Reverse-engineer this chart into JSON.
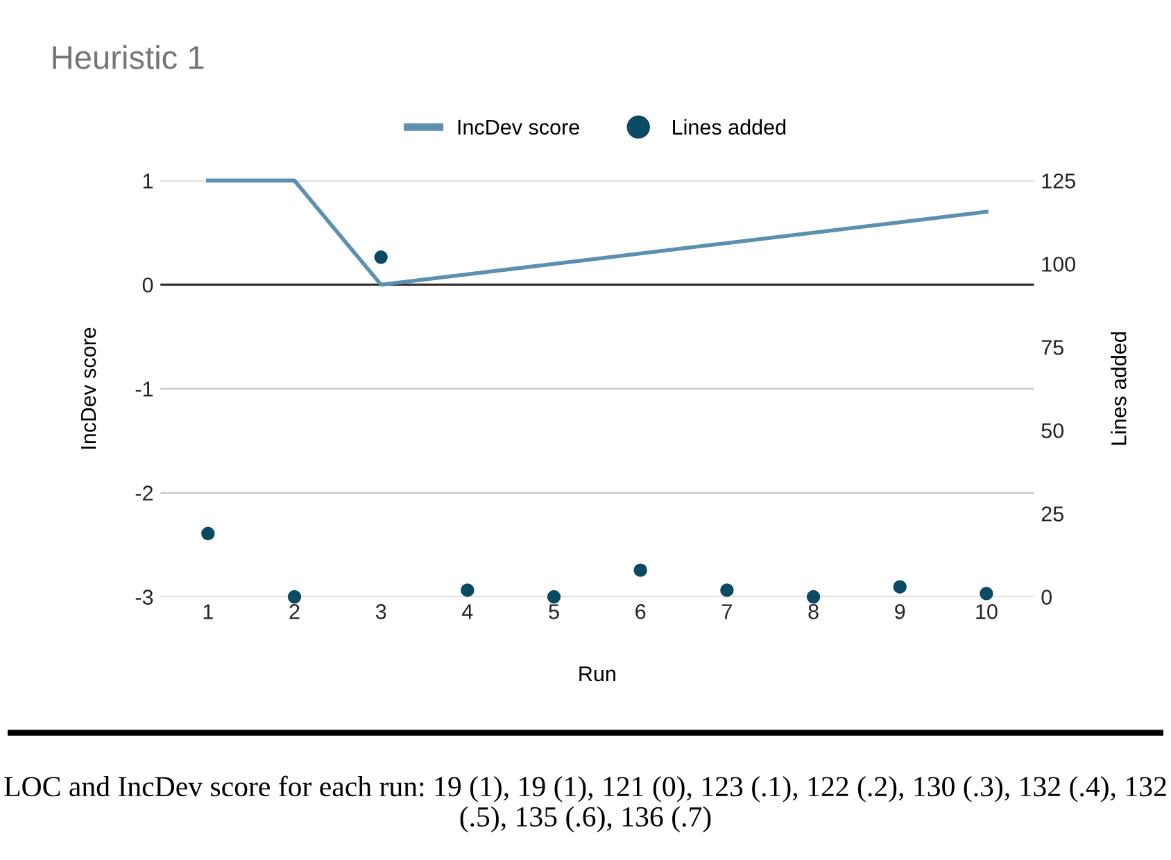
{
  "chart_data": {
    "type": "line",
    "title": "Heuristic 1",
    "xlabel": "Run",
    "ylabel": "IncDev score",
    "y2label": "Lines added",
    "categories": [
      "1",
      "2",
      "3",
      "4",
      "5",
      "6",
      "7",
      "8",
      "9",
      "10"
    ],
    "series": [
      {
        "name": "IncDev score",
        "color": "#5b90b0",
        "marker": "none",
        "values": [
          1,
          1,
          0,
          0.1,
          0.2,
          0.3,
          0.4,
          0.5,
          0.6,
          0.7
        ]
      },
      {
        "name": "Lines added",
        "type": "scatter",
        "axis": "y2",
        "color": "#0b4a63",
        "marker": "circle",
        "values": [
          19,
          0,
          102,
          2,
          0,
          8,
          2,
          0,
          3,
          1
        ]
      }
    ],
    "ylim": [
      -3,
      1
    ],
    "yticks": [
      -3,
      -2,
      -1,
      0,
      1
    ],
    "y2lim": [
      0,
      125
    ],
    "y2ticks": [
      0,
      25,
      50,
      75,
      100,
      125
    ],
    "ref_lines": [
      {
        "axis": "y",
        "value": 0,
        "color": "#333333"
      }
    ],
    "grid": "y",
    "legend": "top",
    "annotations": [
      "LOC and IncDev score for each run: 19 (1), 19 (1), 121 (0), 123 (.1), 122 (.2), 130 (.3), 132 (.4), 132 (.5), 135 (.6), 136 (.7)"
    ]
  }
}
